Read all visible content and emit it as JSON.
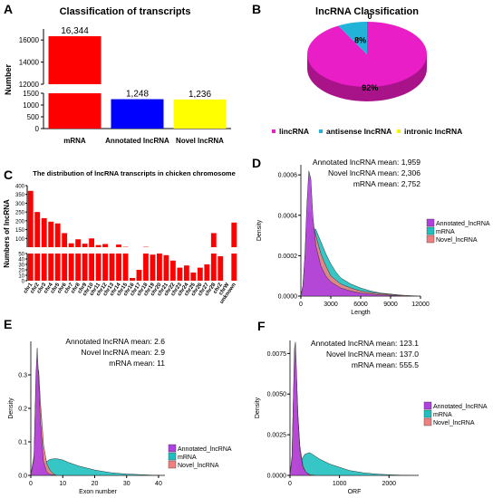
{
  "panel_letters": [
    "A",
    "B",
    "C",
    "D",
    "E",
    "F"
  ],
  "chart_data": [
    {
      "id": "A",
      "type": "bar",
      "title": "Classification of transcripts",
      "ylabel": "Number",
      "categories": [
        "mRNA",
        "Annotated lncRNA",
        "Novel lncRNA"
      ],
      "values": [
        16344,
        1248,
        1236
      ],
      "value_labels": [
        "16,344",
        "1,248",
        "1,236"
      ],
      "colors": [
        "#ff0000",
        "#0000ff",
        "#ffff00"
      ],
      "axis_break": true,
      "lower_ylim": [
        0,
        1500
      ],
      "upper_ylim": [
        12000,
        17000
      ],
      "yticks_lower": [
        "0",
        "500",
        "1000",
        "1500"
      ],
      "yticks_upper": [
        "12000",
        "14000",
        "16000"
      ],
      "yticks_lower_values": [
        0,
        500,
        1000,
        1500
      ],
      "yticks_upper_values": [
        12000,
        14000,
        16000
      ]
    },
    {
      "id": "B",
      "type": "pie",
      "title": "lncRNA Classification",
      "slices": [
        {
          "label": "lincRNA",
          "value": 92,
          "pct_label": "92%",
          "color": "#e91ec6"
        },
        {
          "label": "antisense lncRNA",
          "value": 8,
          "pct_label": "8%",
          "color": "#22b4d8"
        },
        {
          "label": "intronic lncRNA",
          "value": 0,
          "pct_label": "0",
          "color": "#f5f500"
        }
      ],
      "legend": "bottom"
    },
    {
      "id": "C",
      "type": "bar",
      "title": "The distribution of lncRNA transcripts in chicken chromosome",
      "ylabel": "Numbers of lncRNA",
      "color": "#ff0000",
      "axis_break": true,
      "categories": [
        "chr1",
        "chr2",
        "chr3",
        "chr4",
        "chr5",
        "chr6",
        "chr7",
        "chr8",
        "chr9",
        "chr10",
        "chr11",
        "chr12",
        "chr13",
        "chr14",
        "chr15",
        "chr16",
        "chr17",
        "chr18",
        "chr19",
        "chr20",
        "chr21",
        "chr22",
        "chr23",
        "chr24",
        "chr25",
        "chr26",
        "chr27",
        "chr28",
        "chrZ",
        "chrW",
        "unknown"
      ],
      "values": [
        370,
        250,
        215,
        195,
        185,
        130,
        72,
        95,
        70,
        100,
        62,
        68,
        50,
        65,
        52,
        5,
        20,
        52,
        48,
        50,
        47,
        37,
        24,
        28,
        15,
        24,
        30,
        130,
        45,
        0,
        190
      ],
      "yticks": [
        "0",
        "10",
        "20",
        "30",
        "40",
        "50",
        "100",
        "150",
        "200",
        "250",
        "300",
        "350",
        "400"
      ],
      "yticks_values": [
        0,
        10,
        20,
        30,
        40,
        50,
        100,
        150,
        200,
        250,
        300,
        350,
        400
      ]
    },
    {
      "id": "D",
      "type": "area",
      "xlabel": "Length",
      "ylabel": "Density",
      "xlim": [
        0,
        12000
      ],
      "ylim": [
        0,
        0.00065
      ],
      "xticks": [
        "0",
        "3000",
        "6000",
        "9000",
        "12000"
      ],
      "xticks_values": [
        0,
        3000,
        6000,
        9000,
        12000
      ],
      "yticks": [
        "0.0000",
        "0.0002",
        "0.0004",
        "0.0006"
      ],
      "yticks_values": [
        0,
        0.0002,
        0.0004,
        0.0006
      ],
      "annotations": [
        "Annotated lncRNA mean: 1,959",
        "Novel lncRNA mean: 2,306",
        "mRNA mean: 2,752"
      ],
      "series": [
        {
          "name": "Annotated_lncRNA",
          "color": "#b040e0",
          "x": [
            0,
            200,
            400,
            600,
            800,
            1000,
            1200,
            1500,
            2000,
            2500,
            3000,
            4000,
            5000,
            6000,
            8000,
            10000
          ],
          "values": [
            0,
            5e-05,
            0.0002,
            0.00045,
            0.00062,
            0.00058,
            0.0004,
            0.00025,
            0.00015,
            0.0001,
            7e-05,
            4e-05,
            2.5e-05,
            1.5e-05,
            6e-06,
            2e-06
          ]
        },
        {
          "name": "mRNA",
          "color": "#20c0c0",
          "x": [
            0,
            200,
            400,
            600,
            800,
            1000,
            1500,
            2000,
            2500,
            3000,
            3500,
            4000,
            5000,
            6000,
            7000,
            8000,
            9000,
            10000,
            11000,
            11600
          ],
          "values": [
            0,
            3e-05,
            9e-05,
            0.00018,
            0.00028,
            0.00034,
            0.00033,
            0.00027,
            0.00021,
            0.00016,
            0.00012,
            9e-05,
            6e-05,
            4e-05,
            2.5e-05,
            1.5e-05,
            1e-05,
            5e-06,
            2e-06,
            1e-06
          ]
        },
        {
          "name": "Novel_lncRNA",
          "color": "#f08080",
          "x": [
            0,
            200,
            400,
            600,
            800,
            1000,
            1200,
            1500,
            2000,
            2500,
            3000,
            4000,
            5000,
            6000,
            7000,
            8000,
            9000,
            10000,
            11000
          ],
          "values": [
            0,
            5e-05,
            0.00018,
            0.00034,
            0.00042,
            0.00041,
            0.00036,
            0.0003,
            0.00021,
            0.00015,
            0.0001,
            6e-05,
            4e-05,
            2.5e-05,
            1.8e-05,
            1.2e-05,
            8e-06,
            4e-06,
            2e-06
          ]
        }
      ]
    },
    {
      "id": "E",
      "type": "area",
      "xlabel": "Exon number",
      "ylabel": "Density",
      "xlim": [
        0,
        42
      ],
      "ylim": [
        0,
        0.4
      ],
      "xticks": [
        "0",
        "10",
        "20",
        "30",
        "40"
      ],
      "xticks_values": [
        0,
        10,
        20,
        30,
        40
      ],
      "yticks": [
        "0.0",
        "0.1",
        "0.2",
        "0.3"
      ],
      "yticks_values": [
        0,
        0.1,
        0.2,
        0.3
      ],
      "annotations": [
        "Annotated lncRNA mean: 2.6",
        "Novel lncRNA mean: 2.9",
        "mRNA mean: 11"
      ],
      "series": [
        {
          "name": "Annotated_lncRNA",
          "color": "#b040e0",
          "x": [
            0,
            1,
            1.6,
            2,
            2.4,
            3,
            4,
            5,
            6,
            8
          ],
          "values": [
            0,
            0.05,
            0.3,
            0.38,
            0.3,
            0.16,
            0.04,
            0.01,
            0.003,
            0
          ]
        },
        {
          "name": "mRNA",
          "color": "#20c0c0",
          "x": [
            0,
            2,
            4,
            6,
            8,
            10,
            12,
            15,
            20,
            25,
            30,
            35,
            40
          ],
          "values": [
            0,
            0.01,
            0.035,
            0.048,
            0.05,
            0.046,
            0.038,
            0.028,
            0.016,
            0.008,
            0.004,
            0.002,
            0
          ]
        },
        {
          "name": "Novel_lncRNA",
          "color": "#f08080",
          "x": [
            0,
            1,
            1.6,
            2,
            2.5,
            3,
            4,
            5,
            6,
            7,
            8
          ],
          "values": [
            0,
            0.06,
            0.26,
            0.33,
            0.31,
            0.22,
            0.09,
            0.035,
            0.015,
            0.005,
            0
          ]
        }
      ]
    },
    {
      "id": "F",
      "type": "area",
      "xlabel": "ORF",
      "ylabel": "Density",
      "xlim": [
        0,
        2600
      ],
      "ylim": [
        0,
        0.0083
      ],
      "xticks": [
        "0",
        "1000",
        "2000"
      ],
      "xticks_values": [
        0,
        1000,
        2000
      ],
      "yticks": [
        "0.0000",
        "0.0025",
        "0.0050",
        "0.0075"
      ],
      "yticks_values": [
        0,
        0.0025,
        0.005,
        0.0075
      ],
      "annotations": [
        "Annotated lncRNA mean: 123.1",
        "Novel lncRNA mean: 137.0",
        "mRNA mean: 555.5"
      ],
      "series": [
        {
          "name": "Annotated_lncRNA",
          "color": "#b040e0",
          "x": [
            0,
            40,
            70,
            90,
            110,
            130,
            160,
            200,
            260,
            320,
            400
          ],
          "values": [
            0,
            0.001,
            0.005,
            0.0078,
            0.0082,
            0.0065,
            0.0035,
            0.0015,
            0.0005,
            0.0002,
            0
          ]
        },
        {
          "name": "mRNA",
          "color": "#20c0c0",
          "x": [
            0,
            100,
            200,
            300,
            400,
            500,
            600,
            800,
            1000,
            1200,
            1500,
            1800,
            2100,
            2400
          ],
          "values": [
            0,
            0.0002,
            0.0008,
            0.0013,
            0.0014,
            0.0012,
            0.001,
            0.0007,
            0.0005,
            0.0003,
            0.00015,
            7e-05,
            3e-05,
            0
          ]
        },
        {
          "name": "Novel_lncRNA",
          "color": "#f08080",
          "x": [
            0,
            40,
            70,
            90,
            110,
            130,
            160,
            200,
            260,
            320,
            400,
            500
          ],
          "values": [
            0,
            0.0012,
            0.005,
            0.0072,
            0.0076,
            0.0062,
            0.0038,
            0.0018,
            0.0006,
            0.0002,
            5e-05,
            0
          ]
        }
      ]
    }
  ]
}
